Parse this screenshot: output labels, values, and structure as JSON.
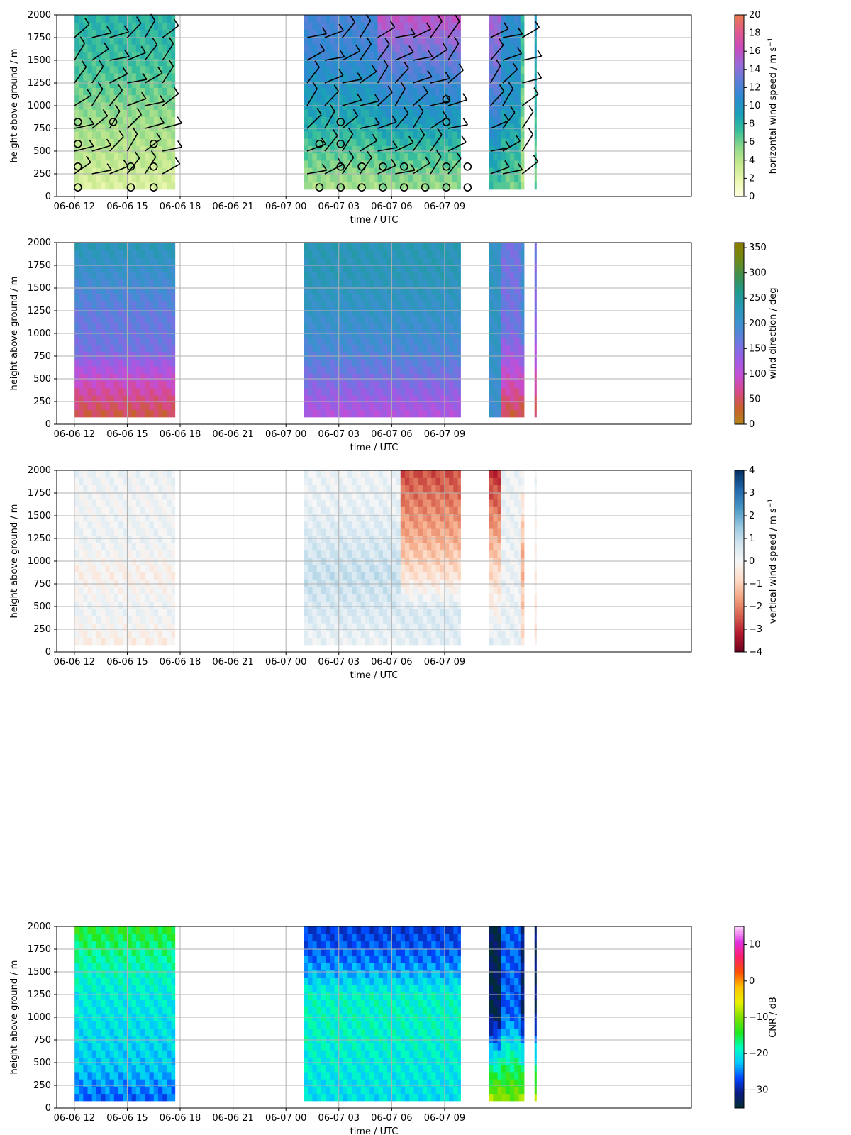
{
  "chart_data": [
    {
      "type": "heatmap",
      "xlabel": "time / UTC",
      "ylabel": "height above ground / m",
      "colorbar_label": "horizontal wind speed / m s",
      "colorbar_label_sup": "−1",
      "colorbar_ticks": [
        "0",
        "2",
        "4",
        "6",
        "8",
        "10",
        "12",
        "14",
        "16",
        "18",
        "20"
      ],
      "colorbar_range": [
        0,
        20
      ],
      "colormap": [
        "#ffffe0",
        "#eaf7b0",
        "#c6e98f",
        "#8fd98a",
        "#37bf9b",
        "#1a9fb8",
        "#2b8ad0",
        "#5b7fd8",
        "#9b6ad8",
        "#c74cbe",
        "#e05a8c",
        "#e87a50"
      ],
      "grid": true,
      "overlay": "wind barbs",
      "rows": [
        {
          "t": [
            0,
            5.7
          ],
          "v": [
            2.5,
            4,
            5,
            6.5,
            7.5,
            8
          ]
        },
        {
          "t": [
            13,
            17.2
          ],
          "v": [
            4.5,
            6.5,
            8.5,
            10,
            11.5,
            12
          ]
        },
        {
          "t": [
            17.2,
            21.9
          ],
          "v": [
            5,
            7,
            9.5,
            11.5,
            13.5,
            16
          ]
        },
        {
          "t": [
            23.5,
            24.2
          ],
          "v": [
            7,
            12,
            15
          ]
        },
        {
          "t": [
            24.2,
            25.3
          ],
          "v": [
            6,
            10,
            11
          ]
        },
        {
          "t": [
            25.3,
            25.5
          ],
          "v": [
            4,
            6,
            8
          ]
        },
        {
          "t": [
            26.1,
            26.2
          ],
          "v": [
            6,
            8,
            10
          ]
        }
      ]
    },
    {
      "type": "heatmap",
      "xlabel": "time / UTC",
      "ylabel": "height above ground / m",
      "colorbar_label": "wind direction / deg",
      "colorbar_ticks": [
        "0",
        "50",
        "100",
        "150",
        "200",
        "250",
        "300",
        "350"
      ],
      "colorbar_range": [
        0,
        360
      ],
      "colormap": [
        "#b4861a",
        "#c8602e",
        "#d84a8a",
        "#c44fd6",
        "#9b5de5",
        "#6b78e0",
        "#3f8fd2",
        "#2a98b8",
        "#1f9a8e",
        "#3f9050",
        "#6f8a18",
        "#8c7c00"
      ],
      "grid": true,
      "rows": [
        {
          "t": [
            0,
            5.7
          ],
          "v": [
            40,
            90,
            160,
            170,
            200,
            230
          ]
        },
        {
          "t": [
            13,
            21.9
          ],
          "v": [
            110,
            150,
            190,
            210,
            225,
            230
          ]
        },
        {
          "t": [
            23.5,
            24.2
          ],
          "v": [
            200,
            215,
            215
          ]
        },
        {
          "t": [
            24.2,
            25.3
          ],
          "v": [
            40,
            160,
            160
          ]
        },
        {
          "t": [
            25.3,
            25.5
          ],
          "v": [
            30,
            190,
            200
          ]
        },
        {
          "t": [
            26.1,
            26.2
          ],
          "v": [
            40,
            140,
            160
          ]
        }
      ]
    },
    {
      "type": "heatmap",
      "xlabel": "time / UTC",
      "ylabel": "height above ground / m",
      "colorbar_label": "vertical wind speed / m s",
      "colorbar_label_sup": "−1",
      "colorbar_ticks": [
        "−4",
        "−3",
        "−2",
        "−1",
        "0",
        "1",
        "2",
        "3",
        "4"
      ],
      "colorbar_range": [
        -4,
        4
      ],
      "colormap": [
        "#67001f",
        "#b2182b",
        "#d6604d",
        "#f4a582",
        "#fddbc7",
        "#f7f7f7",
        "#d1e5f0",
        "#92c5de",
        "#4393c3",
        "#2166ac",
        "#053061"
      ],
      "grid": true,
      "rows": [
        {
          "t": [
            0,
            5.7
          ],
          "v": [
            -0.3,
            0.2,
            -0.2,
            0.2,
            0.1,
            0.2
          ]
        },
        {
          "t": [
            13,
            18.5
          ],
          "v": [
            0.2,
            0.6,
            0.9,
            0.6,
            0.3,
            0.2
          ]
        },
        {
          "t": [
            18.5,
            21.9
          ],
          "v": [
            0.4,
            0.6,
            -0.6,
            -1.4,
            -2,
            -2.6
          ]
        },
        {
          "t": [
            23.5,
            24.2
          ],
          "v": [
            0.5,
            -1,
            -3
          ]
        },
        {
          "t": [
            24.2,
            25.3
          ],
          "v": [
            0.3,
            0.2,
            0.2
          ]
        },
        {
          "t": [
            25.3,
            25.5
          ],
          "v": [
            -0.5,
            -1.5,
            0.2
          ]
        },
        {
          "t": [
            26.1,
            26.2
          ],
          "v": [
            -0.5,
            -0.2,
            0.2
          ]
        }
      ]
    },
    {
      "type": "heatmap",
      "xlabel": "time / UTC",
      "ylabel": "height above ground / m",
      "colorbar_label": "CNR / dB",
      "colorbar_ticks": [
        "−30",
        "−20",
        "−10",
        "0",
        "10"
      ],
      "colorbar_range": [
        -35,
        15
      ],
      "colormap": [
        "#003030",
        "#0a1a80",
        "#0044ff",
        "#00c8ff",
        "#00ffc0",
        "#20e820",
        "#80e000",
        "#e8f000",
        "#ffc000",
        "#ff5000",
        "#ff1f6f",
        "#e030e0",
        "#ffd8ff"
      ],
      "grid": true,
      "rows": [
        {
          "t": [
            0,
            5.7
          ],
          "v": [
            -26,
            -22,
            -21,
            -20,
            -18,
            -14
          ]
        },
        {
          "t": [
            13,
            21.9
          ],
          "v": [
            -21,
            -20,
            -19,
            -19,
            -25,
            -28
          ]
        },
        {
          "t": [
            23.5,
            24.2
          ],
          "v": [
            -8,
            -33,
            -33
          ]
        },
        {
          "t": [
            24.2,
            25.3
          ],
          "v": [
            -10,
            -26,
            -26
          ]
        },
        {
          "t": [
            25.3,
            25.5
          ],
          "v": [
            -8,
            -32,
            -31
          ]
        },
        {
          "t": [
            26.1,
            26.2
          ],
          "v": [
            -8,
            -32,
            -32
          ]
        }
      ]
    }
  ],
  "x_axis": {
    "range_hours": [
      -1,
      35
    ],
    "tick_labels": [
      "06-06 12",
      "06-06 15",
      "06-06 18",
      "06-06 21",
      "06-07 00",
      "06-07 03",
      "06-07 06",
      "06-07 09"
    ],
    "tick_hours": [
      0,
      3,
      6,
      9,
      12,
      15,
      18,
      21
    ]
  },
  "y_axis": {
    "range": [
      0,
      2000
    ],
    "tick_labels": [
      "0",
      "250",
      "500",
      "750",
      "1000",
      "1250",
      "1500",
      "1750",
      "2000"
    ],
    "tick_values": [
      0,
      250,
      500,
      750,
      1000,
      1250,
      1500,
      1750,
      2000
    ]
  }
}
